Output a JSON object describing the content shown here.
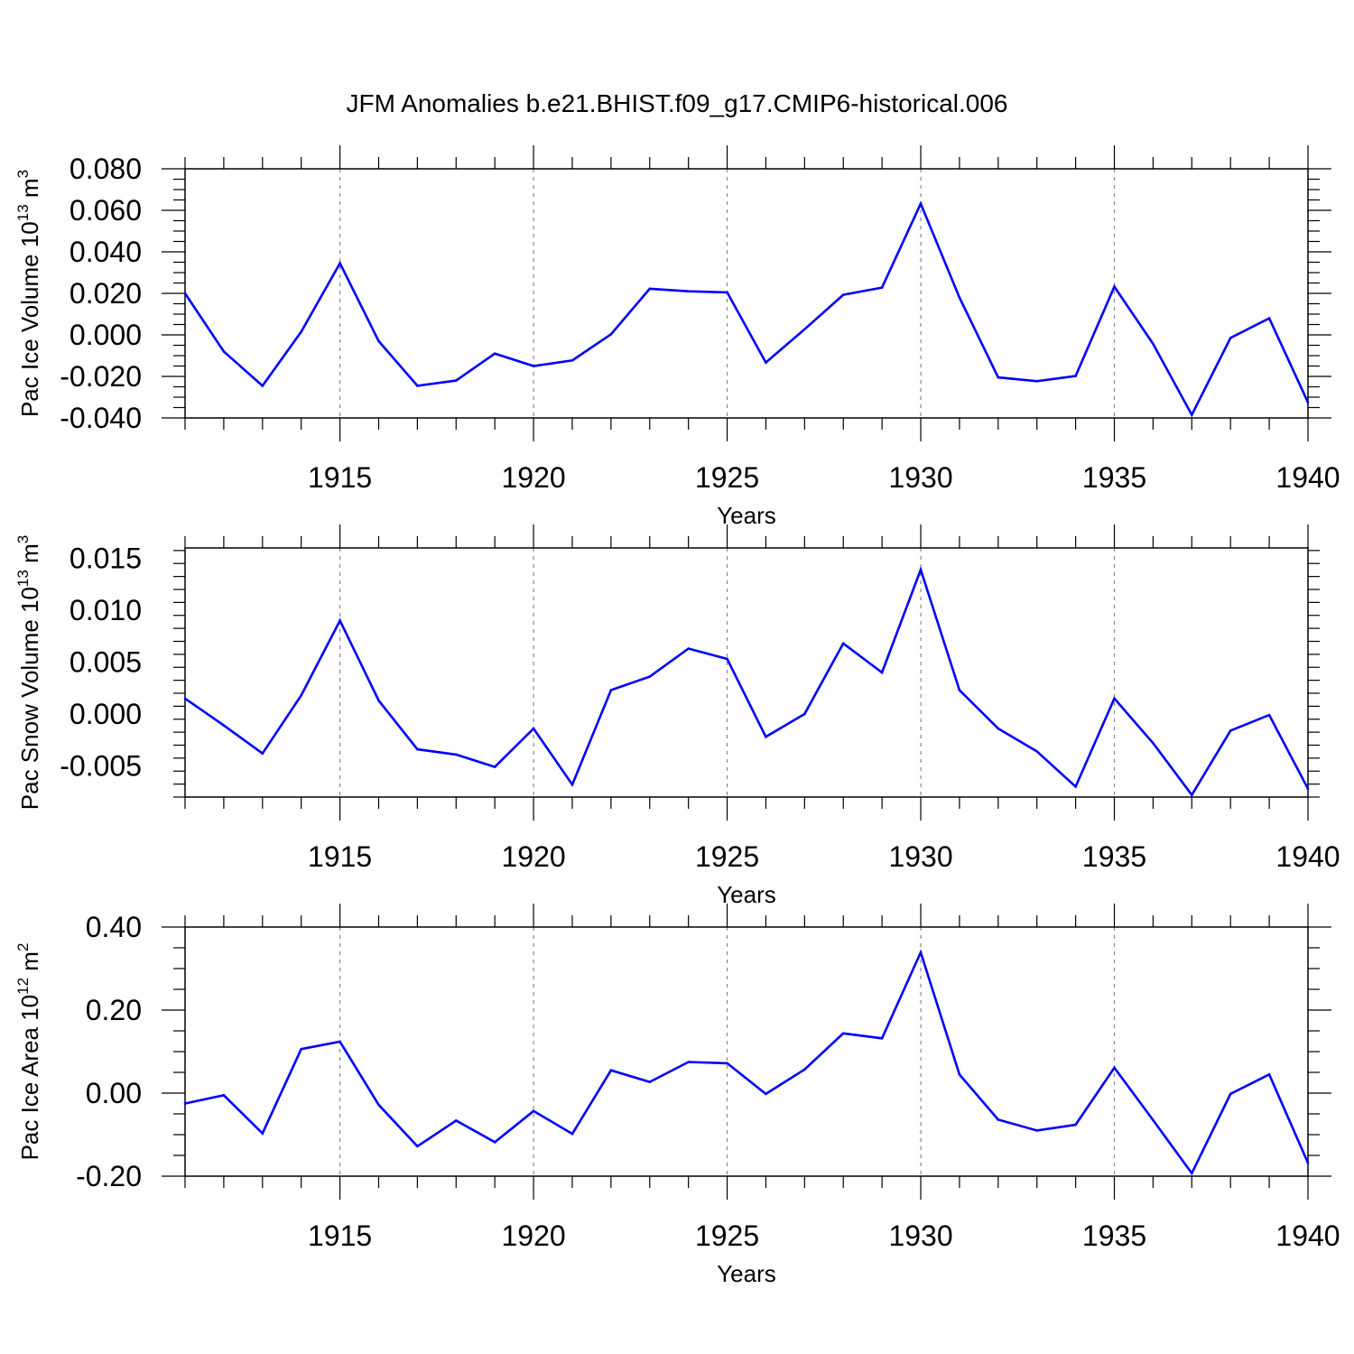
{
  "title": "JFM Anomalies b.e21.BHIST.f09_g17.CMIP6-historical.006",
  "line_color": "#0000ff",
  "chart_data": [
    {
      "type": "line",
      "ylabel_main": "Pac Ice Volume 10",
      "ylabel_exp": "13",
      "ylabel_unit": " m",
      "ylabel_unit_exp": "3",
      "xlabel": "Years",
      "xlim": [
        1911,
        1940
      ],
      "ylim": [
        -0.04,
        0.08
      ],
      "yticks": [
        -0.04,
        -0.02,
        0.0,
        0.02,
        0.04,
        0.06,
        0.08
      ],
      "ytick_labels": [
        "-0.040",
        "-0.020",
        "0.000",
        "0.020",
        "0.040",
        "0.060",
        "0.080"
      ],
      "xticks": [
        1915,
        1920,
        1925,
        1930,
        1935,
        1940
      ],
      "xtick_labels": [
        "1915",
        "1920",
        "1925",
        "1930",
        "1935",
        "1940"
      ],
      "x": [
        1911,
        1912,
        1913,
        1914,
        1915,
        1916,
        1917,
        1918,
        1919,
        1920,
        1921,
        1922,
        1923,
        1924,
        1925,
        1926,
        1927,
        1928,
        1929,
        1930,
        1931,
        1932,
        1933,
        1934,
        1935,
        1936,
        1937,
        1938,
        1939,
        1940
      ],
      "values": [
        0.02,
        -0.008,
        -0.0245,
        0.0015,
        0.0345,
        -0.003,
        -0.0245,
        -0.022,
        -0.009,
        -0.015,
        -0.0123,
        0.0003,
        0.0222,
        0.021,
        0.0205,
        -0.0133,
        0.0027,
        0.0193,
        0.0228,
        0.0632,
        0.018,
        -0.0205,
        -0.0223,
        -0.0198,
        0.0232,
        -0.0043,
        -0.0385,
        -0.0015,
        0.008,
        -0.0325
      ]
    },
    {
      "type": "line",
      "ylabel_main": "Pac Snow Volume 10",
      "ylabel_exp": "13",
      "ylabel_unit": " m",
      "ylabel_unit_exp": "3",
      "xlabel": "Years",
      "xlim": [
        1911,
        1940
      ],
      "ylim": [
        -0.008,
        0.016
      ],
      "yticks": [
        -0.005,
        0.0,
        0.005,
        0.01,
        0.015
      ],
      "ytick_labels": [
        "-0.005",
        "0.000",
        "0.005",
        "0.010",
        "0.015"
      ],
      "xticks": [
        1915,
        1920,
        1925,
        1930,
        1935,
        1940
      ],
      "xtick_labels": [
        "1915",
        "1920",
        "1925",
        "1930",
        "1935",
        "1940"
      ],
      "x": [
        1911,
        1912,
        1913,
        1914,
        1915,
        1916,
        1917,
        1918,
        1919,
        1920,
        1921,
        1922,
        1923,
        1924,
        1925,
        1926,
        1927,
        1928,
        1929,
        1930,
        1931,
        1932,
        1933,
        1934,
        1935,
        1936,
        1937,
        1938,
        1939,
        1940
      ],
      "values": [
        0.0015,
        -0.0011,
        -0.0038,
        0.0018,
        0.009,
        0.0013,
        -0.0034,
        -0.0039,
        -0.0051,
        -0.0014,
        -0.0068,
        0.0023,
        0.0036,
        0.0063,
        0.0053,
        -0.0022,
        0.0,
        0.0068,
        0.004,
        0.0139,
        0.0023,
        -0.0014,
        -0.0036,
        -0.007,
        0.0015,
        -0.0028,
        -0.0078,
        -0.0016,
        -0.0001,
        -0.0072
      ]
    },
    {
      "type": "line",
      "ylabel_main": "Pac Ice Area 10",
      "ylabel_exp": "12",
      "ylabel_unit": " m",
      "ylabel_unit_exp": "2",
      "xlabel": "Years",
      "xlim": [
        1911,
        1940
      ],
      "ylim": [
        -0.2,
        0.4
      ],
      "yticks": [
        -0.2,
        0.0,
        0.2,
        0.4
      ],
      "ytick_labels": [
        "-0.20",
        "0.00",
        "0.20",
        "0.40"
      ],
      "xticks": [
        1915,
        1920,
        1925,
        1930,
        1935,
        1940
      ],
      "xtick_labels": [
        "1915",
        "1920",
        "1925",
        "1930",
        "1935",
        "1940"
      ],
      "x": [
        1911,
        1912,
        1913,
        1914,
        1915,
        1916,
        1917,
        1918,
        1919,
        1920,
        1921,
        1922,
        1923,
        1924,
        1925,
        1926,
        1927,
        1928,
        1929,
        1930,
        1931,
        1932,
        1933,
        1934,
        1935,
        1936,
        1937,
        1938,
        1939,
        1940
      ],
      "values": [
        -0.025,
        -0.005,
        -0.097,
        0.106,
        0.124,
        -0.028,
        -0.128,
        -0.066,
        -0.118,
        -0.043,
        -0.098,
        0.055,
        0.027,
        0.075,
        0.072,
        -0.002,
        0.057,
        0.144,
        0.132,
        0.339,
        0.045,
        -0.064,
        -0.09,
        -0.076,
        0.061,
        -0.065,
        -0.193,
        -0.002,
        0.045,
        -0.168
      ]
    }
  ]
}
